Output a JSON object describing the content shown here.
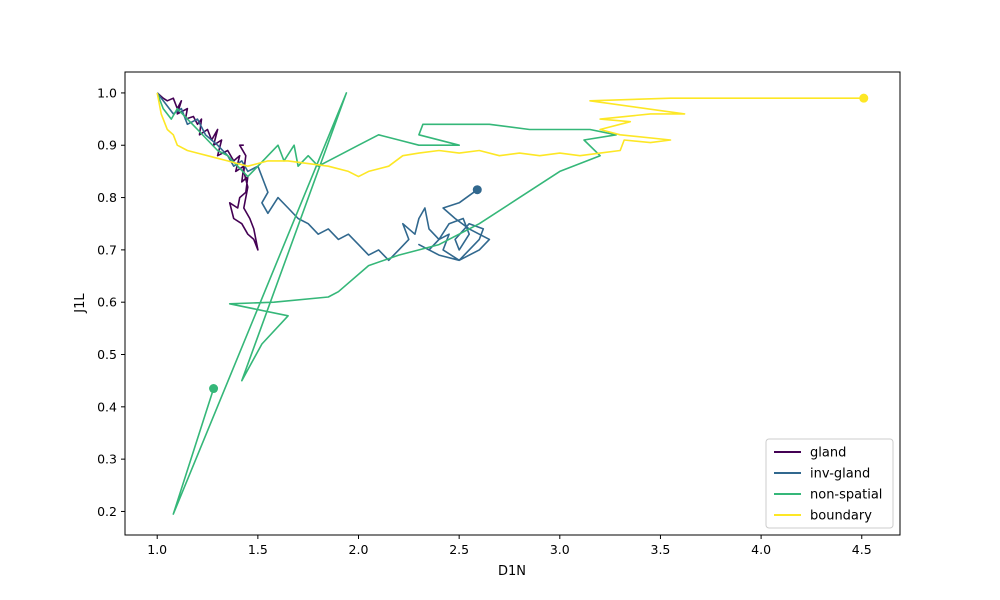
{
  "chart_data": {
    "type": "line",
    "title": "",
    "xlabel": "D1N",
    "ylabel": "J1L",
    "xlim": [
      0.84,
      4.69
    ],
    "ylim": [
      0.155,
      1.04
    ],
    "xticks": [
      "1.0",
      "1.5",
      "2.0",
      "2.5",
      "3.0",
      "3.5",
      "4.0",
      "4.5"
    ],
    "yticks": [
      "0.2",
      "0.3",
      "0.4",
      "0.5",
      "0.6",
      "0.7",
      "0.8",
      "0.9",
      "1.0"
    ],
    "grid": false,
    "legend_position": "lower-right",
    "series": [
      {
        "name": "gland",
        "color": "#440154",
        "end_marker": false,
        "points": [
          [
            1.0,
            1.0
          ],
          [
            1.03,
            0.99
          ],
          [
            1.05,
            0.985
          ],
          [
            1.08,
            0.99
          ],
          [
            1.1,
            0.97
          ],
          [
            1.12,
            0.985
          ],
          [
            1.1,
            0.96
          ],
          [
            1.15,
            0.97
          ],
          [
            1.14,
            0.95
          ],
          [
            1.18,
            0.955
          ],
          [
            1.2,
            0.94
          ],
          [
            1.22,
            0.95
          ],
          [
            1.21,
            0.92
          ],
          [
            1.25,
            0.93
          ],
          [
            1.27,
            0.91
          ],
          [
            1.3,
            0.93
          ],
          [
            1.28,
            0.9
          ],
          [
            1.32,
            0.91
          ],
          [
            1.3,
            0.88
          ],
          [
            1.35,
            0.89
          ],
          [
            1.38,
            0.87
          ],
          [
            1.41,
            0.88
          ],
          [
            1.39,
            0.85
          ],
          [
            1.43,
            0.86
          ],
          [
            1.42,
            0.83
          ],
          [
            1.45,
            0.84
          ],
          [
            1.44,
            0.81
          ],
          [
            1.41,
            0.8
          ],
          [
            1.4,
            0.78
          ],
          [
            1.36,
            0.79
          ],
          [
            1.38,
            0.76
          ],
          [
            1.42,
            0.75
          ],
          [
            1.45,
            0.73
          ],
          [
            1.48,
            0.72
          ],
          [
            1.5,
            0.7
          ],
          [
            1.48,
            0.74
          ],
          [
            1.46,
            0.76
          ],
          [
            1.43,
            0.78
          ],
          [
            1.45,
            0.82
          ],
          [
            1.43,
            0.85
          ],
          [
            1.44,
            0.88
          ],
          [
            1.41,
            0.9
          ],
          [
            1.43,
            0.9
          ]
        ]
      },
      {
        "name": "inv-gland",
        "color": "#31688e",
        "end_marker": true,
        "points": [
          [
            1.0,
            1.0
          ],
          [
            1.04,
            0.98
          ],
          [
            1.08,
            0.96
          ],
          [
            1.12,
            0.97
          ],
          [
            1.15,
            0.94
          ],
          [
            1.2,
            0.95
          ],
          [
            1.24,
            0.92
          ],
          [
            1.3,
            0.9
          ],
          [
            1.35,
            0.88
          ],
          [
            1.38,
            0.86
          ],
          [
            1.42,
            0.87
          ],
          [
            1.45,
            0.85
          ],
          [
            1.5,
            0.86
          ],
          [
            1.53,
            0.83
          ],
          [
            1.55,
            0.81
          ],
          [
            1.52,
            0.79
          ],
          [
            1.55,
            0.77
          ],
          [
            1.6,
            0.8
          ],
          [
            1.65,
            0.78
          ],
          [
            1.7,
            0.76
          ],
          [
            1.75,
            0.75
          ],
          [
            1.8,
            0.73
          ],
          [
            1.85,
            0.74
          ],
          [
            1.9,
            0.72
          ],
          [
            1.95,
            0.73
          ],
          [
            2.0,
            0.71
          ],
          [
            2.05,
            0.69
          ],
          [
            2.1,
            0.7
          ],
          [
            2.15,
            0.68
          ],
          [
            2.2,
            0.7
          ],
          [
            2.25,
            0.72
          ],
          [
            2.22,
            0.75
          ],
          [
            2.28,
            0.73
          ],
          [
            2.3,
            0.76
          ],
          [
            2.33,
            0.78
          ],
          [
            2.35,
            0.74
          ],
          [
            2.4,
            0.72
          ],
          [
            2.45,
            0.73
          ],
          [
            2.42,
            0.7
          ],
          [
            2.5,
            0.68
          ],
          [
            2.55,
            0.7
          ],
          [
            2.6,
            0.72
          ],
          [
            2.62,
            0.74
          ],
          [
            2.55,
            0.75
          ],
          [
            2.48,
            0.72
          ],
          [
            2.5,
            0.7
          ],
          [
            2.55,
            0.73
          ],
          [
            2.52,
            0.76
          ],
          [
            2.45,
            0.75
          ],
          [
            2.4,
            0.72
          ],
          [
            2.35,
            0.7
          ],
          [
            2.3,
            0.71
          ],
          [
            2.4,
            0.69
          ],
          [
            2.5,
            0.68
          ],
          [
            2.6,
            0.7
          ],
          [
            2.65,
            0.72
          ],
          [
            2.55,
            0.74
          ],
          [
            2.48,
            0.76
          ],
          [
            2.42,
            0.78
          ],
          [
            2.5,
            0.79
          ],
          [
            2.59,
            0.815
          ]
        ]
      },
      {
        "name": "non-spatial",
        "color": "#35b779",
        "end_marker": true,
        "points": [
          [
            1.0,
            1.0
          ],
          [
            1.03,
            0.97
          ],
          [
            1.07,
            0.95
          ],
          [
            1.1,
            0.97
          ],
          [
            1.15,
            0.95
          ],
          [
            1.2,
            0.93
          ],
          [
            1.25,
            0.91
          ],
          [
            1.3,
            0.89
          ],
          [
            1.35,
            0.88
          ],
          [
            1.4,
            0.86
          ],
          [
            1.45,
            0.84
          ],
          [
            1.5,
            0.86
          ],
          [
            1.55,
            0.88
          ],
          [
            1.6,
            0.9
          ],
          [
            1.63,
            0.87
          ],
          [
            1.68,
            0.9
          ],
          [
            1.7,
            0.86
          ],
          [
            1.75,
            0.88
          ],
          [
            1.8,
            0.86
          ],
          [
            1.9,
            0.88
          ],
          [
            2.0,
            0.9
          ],
          [
            2.1,
            0.92
          ],
          [
            2.2,
            0.91
          ],
          [
            2.3,
            0.9
          ],
          [
            2.5,
            0.9
          ],
          [
            2.3,
            0.92
          ],
          [
            2.32,
            0.94
          ],
          [
            2.45,
            0.94
          ],
          [
            2.65,
            0.94
          ],
          [
            2.85,
            0.93
          ],
          [
            3.15,
            0.93
          ],
          [
            3.28,
            0.92
          ],
          [
            3.12,
            0.91
          ],
          [
            3.2,
            0.88
          ],
          [
            3.0,
            0.85
          ],
          [
            2.8,
            0.8
          ],
          [
            2.6,
            0.75
          ],
          [
            2.4,
            0.71
          ],
          [
            2.2,
            0.69
          ],
          [
            2.05,
            0.67
          ],
          [
            1.9,
            0.62
          ],
          [
            1.85,
            0.61
          ],
          [
            1.58,
            0.6
          ],
          [
            1.36,
            0.597
          ],
          [
            1.65,
            0.574
          ],
          [
            1.52,
            0.52
          ],
          [
            1.42,
            0.45
          ],
          [
            1.94,
            1.0
          ],
          [
            1.08,
            0.195
          ],
          [
            1.28,
            0.435
          ]
        ]
      },
      {
        "name": "boundary",
        "color": "#fde725",
        "end_marker": true,
        "points": [
          [
            1.0,
            1.0
          ],
          [
            1.02,
            0.96
          ],
          [
            1.05,
            0.93
          ],
          [
            1.08,
            0.92
          ],
          [
            1.1,
            0.9
          ],
          [
            1.15,
            0.89
          ],
          [
            1.2,
            0.885
          ],
          [
            1.25,
            0.88
          ],
          [
            1.3,
            0.875
          ],
          [
            1.35,
            0.87
          ],
          [
            1.4,
            0.865
          ],
          [
            1.45,
            0.86
          ],
          [
            1.55,
            0.87
          ],
          [
            1.65,
            0.87
          ],
          [
            1.75,
            0.865
          ],
          [
            1.85,
            0.86
          ],
          [
            1.95,
            0.85
          ],
          [
            2.0,
            0.84
          ],
          [
            2.05,
            0.85
          ],
          [
            2.15,
            0.86
          ],
          [
            2.22,
            0.88
          ],
          [
            2.3,
            0.885
          ],
          [
            2.4,
            0.89
          ],
          [
            2.5,
            0.885
          ],
          [
            2.6,
            0.89
          ],
          [
            2.7,
            0.88
          ],
          [
            2.8,
            0.885
          ],
          [
            2.9,
            0.88
          ],
          [
            3.0,
            0.885
          ],
          [
            3.1,
            0.88
          ],
          [
            3.2,
            0.885
          ],
          [
            3.3,
            0.89
          ],
          [
            3.32,
            0.91
          ],
          [
            3.45,
            0.905
          ],
          [
            3.55,
            0.91
          ],
          [
            3.3,
            0.92
          ],
          [
            3.2,
            0.93
          ],
          [
            3.35,
            0.945
          ],
          [
            3.2,
            0.95
          ],
          [
            3.45,
            0.96
          ],
          [
            3.62,
            0.96
          ],
          [
            3.15,
            0.985
          ],
          [
            3.55,
            0.99
          ],
          [
            4.51,
            0.99
          ]
        ]
      }
    ]
  }
}
